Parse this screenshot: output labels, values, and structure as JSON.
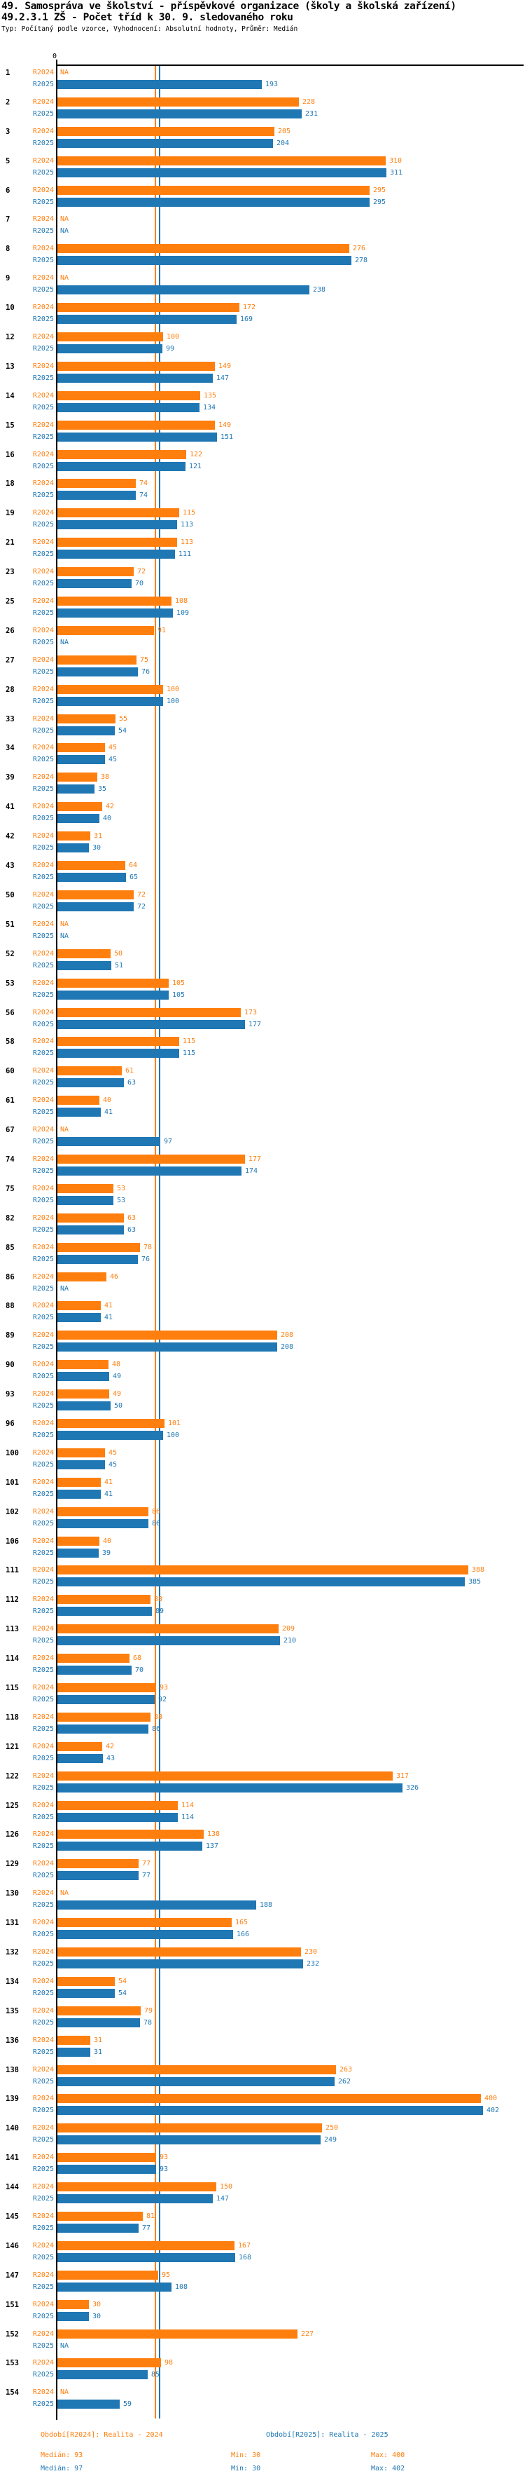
{
  "title_line1": "49. Samospráva ve školství - příspěvkové organizace (školy a školská zařízení)",
  "title_line2": "49.2.3.1 ZŠ - Počet tříd k 30. 9. sledovaného roku",
  "subtitle": "Typ: Počítaný podle vzorce, Vyhodnocení: Absolutní hodnoty, Průměr: Medián",
  "axis": {
    "zero_label": "0"
  },
  "na_label": "NA",
  "colors": {
    "r2024": "#ff7f0e",
    "r2025": "#1f77b4",
    "axis": "#000000"
  },
  "series_labels": {
    "r2024": "R2024",
    "r2025": "R2025"
  },
  "footer": {
    "legend_2024": "Období[R2024]: Realita - 2024",
    "legend_2025": "Období[R2025]: Realita - 2025",
    "median_2024": "Medián: 93",
    "min_2024": "Min: 30",
    "max_2024": "Max: 400",
    "median_2025": "Medián: 97",
    "min_2025": "Min: 30",
    "max_2025": "Max: 402"
  },
  "chart_data": {
    "type": "bar",
    "orientation": "horizontal",
    "title": "49.2.3.1 ZŠ - Počet tříd k 30. 9. sledovaného roku",
    "xlabel": "",
    "ylabel": "",
    "xlim": [
      0,
      440
    ],
    "grid": false,
    "series_names": [
      "R2024",
      "R2025"
    ],
    "medians": {
      "R2024": 93,
      "R2025": 97
    },
    "mins": {
      "R2024": 30,
      "R2025": 30
    },
    "maxs": {
      "R2024": 400,
      "R2025": 402
    },
    "rows": [
      {
        "id": "1",
        "r2024": null,
        "r2025": 193
      },
      {
        "id": "2",
        "r2024": 228,
        "r2025": 231
      },
      {
        "id": "3",
        "r2024": 205,
        "r2025": 204
      },
      {
        "id": "5",
        "r2024": 310,
        "r2025": 311
      },
      {
        "id": "6",
        "r2024": 295,
        "r2025": 295
      },
      {
        "id": "7",
        "r2024": null,
        "r2025": null
      },
      {
        "id": "8",
        "r2024": 276,
        "r2025": 278
      },
      {
        "id": "9",
        "r2024": null,
        "r2025": 238
      },
      {
        "id": "10",
        "r2024": 172,
        "r2025": 169
      },
      {
        "id": "12",
        "r2024": 100,
        "r2025": 99
      },
      {
        "id": "13",
        "r2024": 149,
        "r2025": 147
      },
      {
        "id": "14",
        "r2024": 135,
        "r2025": 134
      },
      {
        "id": "15",
        "r2024": 149,
        "r2025": 151
      },
      {
        "id": "16",
        "r2024": 122,
        "r2025": 121
      },
      {
        "id": "18",
        "r2024": 74,
        "r2025": 74
      },
      {
        "id": "19",
        "r2024": 115,
        "r2025": 113
      },
      {
        "id": "21",
        "r2024": 113,
        "r2025": 111
      },
      {
        "id": "23",
        "r2024": 72,
        "r2025": 70
      },
      {
        "id": "25",
        "r2024": 108,
        "r2025": 109
      },
      {
        "id": "26",
        "r2024": 91,
        "r2025": null
      },
      {
        "id": "27",
        "r2024": 75,
        "r2025": 76
      },
      {
        "id": "28",
        "r2024": 100,
        "r2025": 100
      },
      {
        "id": "33",
        "r2024": 55,
        "r2025": 54
      },
      {
        "id": "34",
        "r2024": 45,
        "r2025": 45
      },
      {
        "id": "39",
        "r2024": 38,
        "r2025": 35
      },
      {
        "id": "41",
        "r2024": 42,
        "r2025": 40
      },
      {
        "id": "42",
        "r2024": 31,
        "r2025": 30
      },
      {
        "id": "43",
        "r2024": 64,
        "r2025": 65
      },
      {
        "id": "50",
        "r2024": 72,
        "r2025": 72
      },
      {
        "id": "51",
        "r2024": null,
        "r2025": null
      },
      {
        "id": "52",
        "r2024": 50,
        "r2025": 51
      },
      {
        "id": "53",
        "r2024": 105,
        "r2025": 105
      },
      {
        "id": "56",
        "r2024": 173,
        "r2025": 177
      },
      {
        "id": "58",
        "r2024": 115,
        "r2025": 115
      },
      {
        "id": "60",
        "r2024": 61,
        "r2025": 63
      },
      {
        "id": "61",
        "r2024": 40,
        "r2025": 41
      },
      {
        "id": "67",
        "r2024": null,
        "r2025": 97
      },
      {
        "id": "74",
        "r2024": 177,
        "r2025": 174
      },
      {
        "id": "75",
        "r2024": 53,
        "r2025": 53
      },
      {
        "id": "82",
        "r2024": 63,
        "r2025": 63
      },
      {
        "id": "85",
        "r2024": 78,
        "r2025": 76
      },
      {
        "id": "86",
        "r2024": 46,
        "r2025": null
      },
      {
        "id": "88",
        "r2024": 41,
        "r2025": 41
      },
      {
        "id": "89",
        "r2024": 208,
        "r2025": 208
      },
      {
        "id": "90",
        "r2024": 48,
        "r2025": 49
      },
      {
        "id": "93",
        "r2024": 49,
        "r2025": 50
      },
      {
        "id": "96",
        "r2024": 101,
        "r2025": 100
      },
      {
        "id": "100",
        "r2024": 45,
        "r2025": 45
      },
      {
        "id": "101",
        "r2024": 41,
        "r2025": 41
      },
      {
        "id": "102",
        "r2024": 86,
        "r2025": 86
      },
      {
        "id": "106",
        "r2024": 40,
        "r2025": 39
      },
      {
        "id": "111",
        "r2024": 388,
        "r2025": 385
      },
      {
        "id": "112",
        "r2024": 88,
        "r2025": 89
      },
      {
        "id": "113",
        "r2024": 209,
        "r2025": 210
      },
      {
        "id": "114",
        "r2024": 68,
        "r2025": 70
      },
      {
        "id": "115",
        "r2024": 93,
        "r2025": 92
      },
      {
        "id": "118",
        "r2024": 88,
        "r2025": 86
      },
      {
        "id": "121",
        "r2024": 42,
        "r2025": 43
      },
      {
        "id": "122",
        "r2024": 317,
        "r2025": 326
      },
      {
        "id": "125",
        "r2024": 114,
        "r2025": 114
      },
      {
        "id": "126",
        "r2024": 138,
        "r2025": 137
      },
      {
        "id": "129",
        "r2024": 77,
        "r2025": 77
      },
      {
        "id": "130",
        "r2024": null,
        "r2025": 188
      },
      {
        "id": "131",
        "r2024": 165,
        "r2025": 166
      },
      {
        "id": "132",
        "r2024": 230,
        "r2025": 232
      },
      {
        "id": "134",
        "r2024": 54,
        "r2025": 54
      },
      {
        "id": "135",
        "r2024": 79,
        "r2025": 78
      },
      {
        "id": "136",
        "r2024": 31,
        "r2025": 31
      },
      {
        "id": "138",
        "r2024": 263,
        "r2025": 262
      },
      {
        "id": "139",
        "r2024": 400,
        "r2025": 402
      },
      {
        "id": "140",
        "r2024": 250,
        "r2025": 249
      },
      {
        "id": "141",
        "r2024": 93,
        "r2025": 93
      },
      {
        "id": "144",
        "r2024": 150,
        "r2025": 147
      },
      {
        "id": "145",
        "r2024": 81,
        "r2025": 77
      },
      {
        "id": "146",
        "r2024": 167,
        "r2025": 168
      },
      {
        "id": "147",
        "r2024": 95,
        "r2025": 108
      },
      {
        "id": "151",
        "r2024": 30,
        "r2025": 30
      },
      {
        "id": "152",
        "r2024": 227,
        "r2025": null
      },
      {
        "id": "153",
        "r2024": 98,
        "r2025": 85
      },
      {
        "id": "154",
        "r2024": null,
        "r2025": 59
      }
    ]
  }
}
